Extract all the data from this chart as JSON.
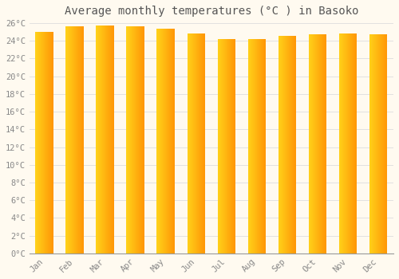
{
  "title": "Average monthly temperatures (°C ) in Basoko",
  "months": [
    "Jan",
    "Feb",
    "Mar",
    "Apr",
    "May",
    "Jun",
    "Jul",
    "Aug",
    "Sep",
    "Oct",
    "Nov",
    "Dec"
  ],
  "values": [
    25.0,
    25.6,
    25.7,
    25.6,
    25.4,
    24.8,
    24.2,
    24.2,
    24.6,
    24.7,
    24.8,
    24.7
  ],
  "ylim": [
    0,
    26
  ],
  "yticks": [
    0,
    2,
    4,
    6,
    8,
    10,
    12,
    14,
    16,
    18,
    20,
    22,
    24,
    26
  ],
  "bar_color_left": "#FFD000",
  "bar_color_right": "#FFA000",
  "bar_color_bottom": "#FF8C00",
  "background_color": "#FFFAF0",
  "grid_color": "#DDDDDD",
  "title_fontsize": 10,
  "tick_fontsize": 7.5,
  "bar_width": 0.6
}
